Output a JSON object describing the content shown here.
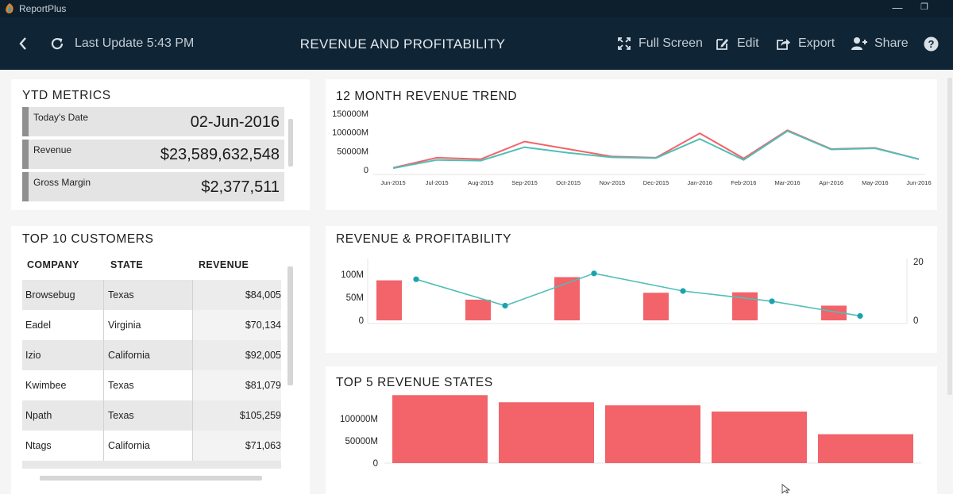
{
  "window": {
    "app_name": "ReportPlus",
    "minimize_glyph": "—",
    "restore_glyph": "❐"
  },
  "header": {
    "back_icon": "chevron-left-icon",
    "refresh_icon": "refresh-icon",
    "last_update": "Last Update 5:43 PM",
    "title": "REVENUE AND PROFITABILITY",
    "full_screen_label": "Full Screen",
    "edit_label": "Edit",
    "export_label": "Export",
    "share_label": "Share",
    "help_icon": "help-icon"
  },
  "ytd": {
    "title": "YTD METRICS",
    "metrics": [
      {
        "label": "Today's Date",
        "value": "02-Jun-2016"
      },
      {
        "label": "Revenue",
        "value": "$23,589,632,548"
      },
      {
        "label": "Gross Margin",
        "value": "$2,377,511"
      }
    ]
  },
  "customers": {
    "title": "TOP 10 CUSTOMERS",
    "columns": [
      "COMPANY",
      "STATE",
      "REVENUE"
    ],
    "rows": [
      {
        "company": "Browsebug",
        "state": "Texas",
        "revenue": "$84,005"
      },
      {
        "company": "Eadel",
        "state": "Virginia",
        "revenue": "$70,134"
      },
      {
        "company": "Izio",
        "state": "California",
        "revenue": "$92,005"
      },
      {
        "company": "Kwimbee",
        "state": "Texas",
        "revenue": "$81,079"
      },
      {
        "company": "Npath",
        "state": "Texas",
        "revenue": "$105,259"
      },
      {
        "company": "Ntags",
        "state": "California",
        "revenue": "$71,063"
      }
    ]
  },
  "colors": {
    "red": "#f2636a",
    "teal": "#4fbfb7",
    "teal_dark": "#1aa3ad",
    "header_bg": "#0f2435"
  },
  "chart_data": [
    {
      "type": "line",
      "title": "12 MONTH REVENUE TREND",
      "x": [
        "Jun-2015",
        "Jul-2015",
        "Aug-2015",
        "Sep-2015",
        "Oct-2015",
        "Nov-2015",
        "Dec-2015",
        "Jan-2016",
        "Feb-2016",
        "Mar-2016",
        "Apr-2016",
        "May-2016",
        "Jun-2016"
      ],
      "yticks": [
        "150000M",
        "100000M",
        "50000M",
        "0"
      ],
      "ylim": [
        0,
        150000
      ],
      "series": [
        {
          "color": "#f2636a",
          "values": [
            5000,
            32000,
            28000,
            75000,
            55000,
            35000,
            32000,
            97000,
            30000,
            105000,
            55000,
            58000,
            28000
          ]
        },
        {
          "color": "#4fbfb7",
          "values": [
            4000,
            26000,
            24000,
            60000,
            45000,
            33000,
            31000,
            82000,
            26000,
            103000,
            54000,
            57000,
            28000
          ]
        }
      ],
      "grid": false
    },
    {
      "type": "bar",
      "title": "REVENUE & PROFITABILITY",
      "yticks_left": [
        "100M",
        "50M",
        "0"
      ],
      "ylim_left": [
        0,
        120
      ],
      "yticks_right": [
        "20",
        "0"
      ],
      "ylim_right": [
        0,
        20
      ],
      "bars": [
        87,
        45,
        94,
        60,
        61,
        32
      ],
      "line": [
        14,
        5,
        16,
        10,
        6.5,
        1.5
      ],
      "bar_color": "#f2636a",
      "line_color": "#4fbfb7",
      "grid": false
    },
    {
      "type": "bar",
      "title": "TOP 5 REVENUE STATES",
      "yticks": [
        "100000M",
        "50000M",
        "0"
      ],
      "ylim": [
        0,
        160000
      ],
      "values": [
        153000,
        137000,
        130000,
        116000,
        65000
      ],
      "bar_color": "#f2636a",
      "grid": false
    }
  ]
}
